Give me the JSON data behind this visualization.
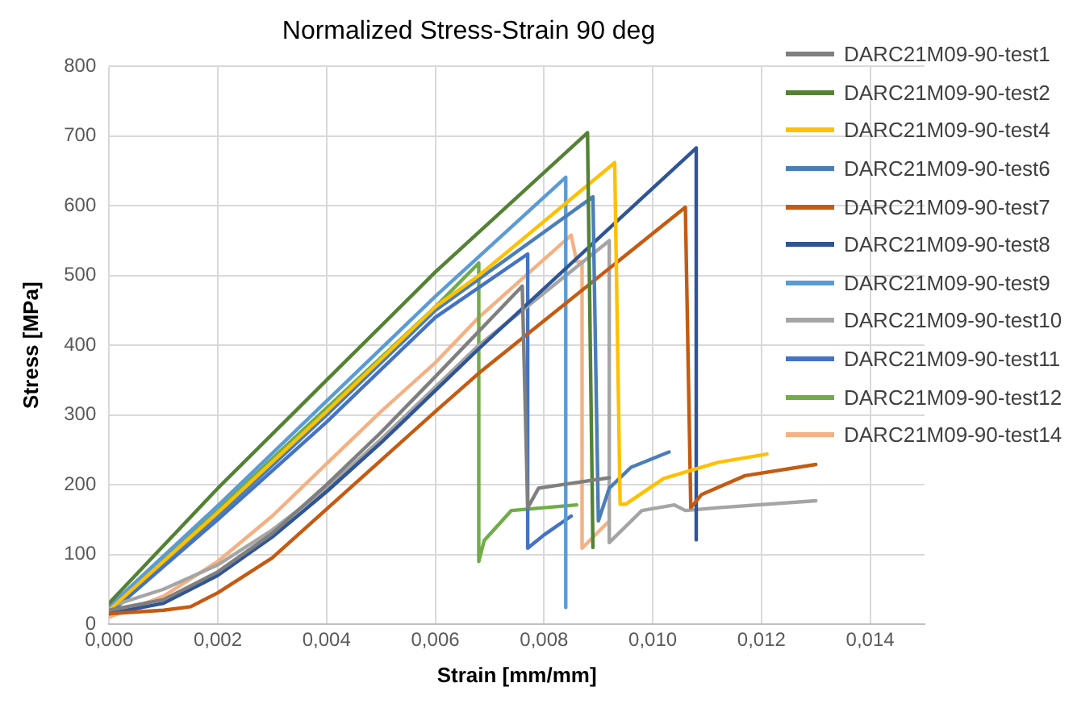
{
  "chart_data": {
    "type": "line",
    "title": "Normalized Stress-Strain 90 deg",
    "xlabel": "Strain [mm/mm]",
    "ylabel": "Stress [MPa]",
    "xlim": [
      0,
      0.015
    ],
    "xticks": [
      {
        "value": 0,
        "label": "0,000"
      },
      {
        "value": 0.002,
        "label": "0,002"
      },
      {
        "value": 0.004,
        "label": "0,004"
      },
      {
        "value": 0.006,
        "label": "0,006"
      },
      {
        "value": 0.008,
        "label": "0,008"
      },
      {
        "value": 0.01,
        "label": "0,010"
      },
      {
        "value": 0.012,
        "label": "0,012"
      },
      {
        "value": 0.014,
        "label": "0,014"
      }
    ],
    "ylim": [
      0,
      800
    ],
    "yticks": [
      0,
      100,
      200,
      300,
      400,
      500,
      600,
      700,
      800
    ],
    "grid": true,
    "legend": "top right",
    "marker": "none",
    "line_style": "solid",
    "series": [
      {
        "name": "DARC21M09-90-test1",
        "color": "#7f7f7f",
        "x": [
          0,
          0.001,
          0.002,
          0.003,
          0.004,
          0.005,
          0.006,
          0.0076,
          0.0077,
          0.0079,
          0.0085,
          0.0092
        ],
        "values": [
          20,
          35,
          75,
          130,
          200,
          275,
          355,
          485,
          167,
          195,
          202,
          210
        ]
      },
      {
        "name": "DARC21M09-90-test2",
        "color": "#548235",
        "x": [
          0,
          0.002,
          0.004,
          0.006,
          0.0088,
          0.0089
        ],
        "values": [
          30,
          195,
          350,
          505,
          705,
          110
        ]
      },
      {
        "name": "DARC21M09-90-test4",
        "color": "#ffc000",
        "x": [
          0,
          0.002,
          0.004,
          0.006,
          0.0068,
          0.0093,
          0.0094,
          0.0095,
          0.0102,
          0.0112,
          0.0121
        ],
        "values": [
          20,
          160,
          305,
          455,
          500,
          662,
          172,
          172,
          209,
          232,
          244
        ]
      },
      {
        "name": "DARC21M09-90-test6",
        "color": "#4a7ebb",
        "x": [
          0,
          0.002,
          0.004,
          0.006,
          0.0089,
          0.009,
          0.0092,
          0.0096,
          0.0103
        ],
        "values": [
          20,
          155,
          300,
          450,
          613,
          148,
          195,
          225,
          247
        ]
      },
      {
        "name": "DARC21M09-90-test7",
        "color": "#c55a11",
        "x": [
          0,
          0.001,
          0.0015,
          0.002,
          0.003,
          0.004,
          0.005,
          0.006,
          0.0068,
          0.0106,
          0.0107,
          0.0109,
          0.0117,
          0.013
        ],
        "values": [
          15,
          20,
          25,
          45,
          95,
          165,
          235,
          305,
          360,
          598,
          167,
          186,
          213,
          229
        ]
      },
      {
        "name": "DARC21M09-90-test8",
        "color": "#2f5597",
        "x": [
          0,
          0.001,
          0.002,
          0.003,
          0.004,
          0.005,
          0.006,
          0.0068,
          0.0108,
          0.0108
        ],
        "values": [
          15,
          30,
          70,
          125,
          190,
          260,
          335,
          395,
          683,
          121
        ]
      },
      {
        "name": "DARC21M09-90-test9",
        "color": "#5b9bd5",
        "x": [
          0,
          0.002,
          0.004,
          0.006,
          0.0084,
          0.0084
        ],
        "values": [
          25,
          170,
          320,
          470,
          641,
          24
        ]
      },
      {
        "name": "DARC21M09-90-test10",
        "color": "#a5a5a5",
        "x": [
          0,
          0.001,
          0.002,
          0.003,
          0.004,
          0.005,
          0.006,
          0.0068,
          0.0092,
          0.0092,
          0.0098,
          0.0104,
          0.0106,
          0.0112,
          0.013
        ],
        "values": [
          25,
          50,
          85,
          135,
          195,
          265,
          340,
          400,
          550,
          117,
          163,
          171,
          163,
          167,
          177
        ]
      },
      {
        "name": "DARC21M09-90-test11",
        "color": "#4472c4",
        "x": [
          0,
          0.002,
          0.004,
          0.006,
          0.0077,
          0.0077,
          0.008,
          0.0085
        ],
        "values": [
          15,
          150,
          290,
          440,
          531,
          109,
          128,
          155
        ]
      },
      {
        "name": "DARC21M09-90-test12",
        "color": "#70ad47",
        "x": [
          0,
          0.002,
          0.004,
          0.006,
          0.0068,
          0.0068,
          0.0069,
          0.0074,
          0.0086
        ],
        "values": [
          20,
          165,
          310,
          455,
          518,
          90,
          120,
          163,
          171
        ]
      },
      {
        "name": "DARC21M09-90-test14",
        "color": "#f4b183",
        "x": [
          0,
          0.001,
          0.002,
          0.003,
          0.004,
          0.005,
          0.006,
          0.0068,
          0.0085,
          0.0086,
          0.0087,
          0.0087,
          0.0092
        ],
        "values": [
          10,
          40,
          90,
          155,
          230,
          305,
          375,
          440,
          558,
          520,
          520,
          109,
          148
        ]
      }
    ]
  }
}
